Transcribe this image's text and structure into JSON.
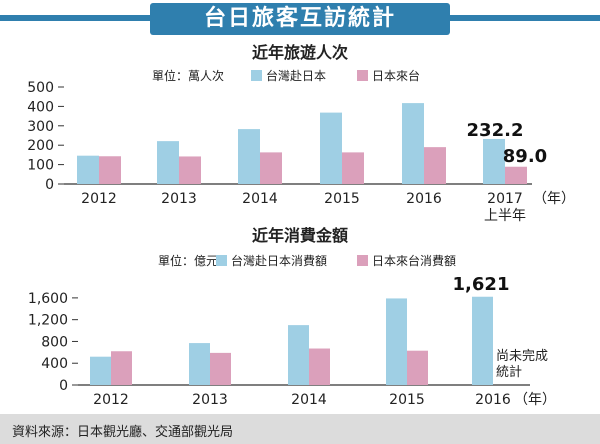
{
  "header": {
    "title": "台日旅客互訪統計"
  },
  "source": {
    "text": "資料來源：日本觀光廳、交通部觀光局"
  },
  "colors": {
    "blue": "#9fcfe4",
    "pink": "#dba0bb",
    "accent": "#2f7fae"
  },
  "chart_data": [
    {
      "type": "bar",
      "title": "近年旅遊人次",
      "unit_label": "單位：萬人次",
      "x_unit": "（年）",
      "categories": [
        "2012",
        "2013",
        "2014",
        "2015",
        "2016",
        "2017"
      ],
      "category_sublabels": [
        "",
        "",
        "",
        "",
        "",
        "上半年"
      ],
      "yticks": [
        0,
        100,
        200,
        300,
        400,
        500
      ],
      "ylim": [
        0,
        500
      ],
      "series": [
        {
          "name": "台灣赴日本",
          "color": "#9fcfe4",
          "values": [
            146,
            221,
            283,
            368,
            417,
            232.2
          ]
        },
        {
          "name": "日本來台",
          "color": "#dba0bb",
          "values": [
            143,
            142,
            163,
            163,
            190,
            89.0
          ]
        }
      ],
      "annotations": [
        "232.2",
        "89.0"
      ]
    },
    {
      "type": "bar",
      "title": "近年消費金額",
      "unit_label": "單位：億元",
      "x_unit": "（年）",
      "categories": [
        "2012",
        "2013",
        "2014",
        "2015",
        "2016"
      ],
      "category_sublabels": [
        "",
        "",
        "",
        "",
        ""
      ],
      "yticks": [
        0,
        400,
        800,
        1200,
        1600
      ],
      "ytick_labels": [
        "0",
        "400",
        "800",
        "1,200",
        "1,600"
      ],
      "ylim": [
        0,
        1800
      ],
      "series": [
        {
          "name": "台灣赴日本消費額",
          "color": "#9fcfe4",
          "values": [
            520,
            770,
            1100,
            1590,
            1621
          ]
        },
        {
          "name": "日本來台消費額",
          "color": "#dba0bb",
          "values": [
            620,
            590,
            670,
            630,
            null
          ]
        }
      ],
      "annotations": [
        "1,621",
        "尚未完成\n統計"
      ]
    }
  ]
}
